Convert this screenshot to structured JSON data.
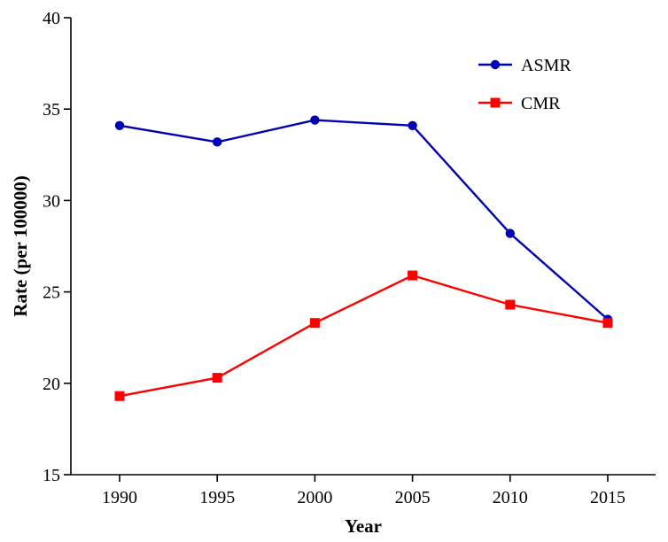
{
  "chart_data": {
    "type": "line",
    "title": "",
    "xlabel": "Year",
    "ylabel": "Rate (per 100000)",
    "x": [
      1990,
      1995,
      2000,
      2005,
      2010,
      2015
    ],
    "xticks": [
      "1990",
      "1995",
      "2000",
      "2005",
      "2010",
      "2015"
    ],
    "ylim": [
      15,
      40
    ],
    "yticks": [
      "15",
      "20",
      "25",
      "30",
      "35",
      "40"
    ],
    "grid": false,
    "legend_position": "top-right",
    "series": [
      {
        "name": "ASMR",
        "color": "#0000b4",
        "marker": "circle",
        "values": [
          34.1,
          33.2,
          34.4,
          34.1,
          28.2,
          23.5
        ]
      },
      {
        "name": "CMR",
        "color": "#ff0000",
        "marker": "square",
        "values": [
          19.3,
          20.3,
          23.3,
          25.9,
          24.3,
          23.3
        ]
      }
    ]
  }
}
